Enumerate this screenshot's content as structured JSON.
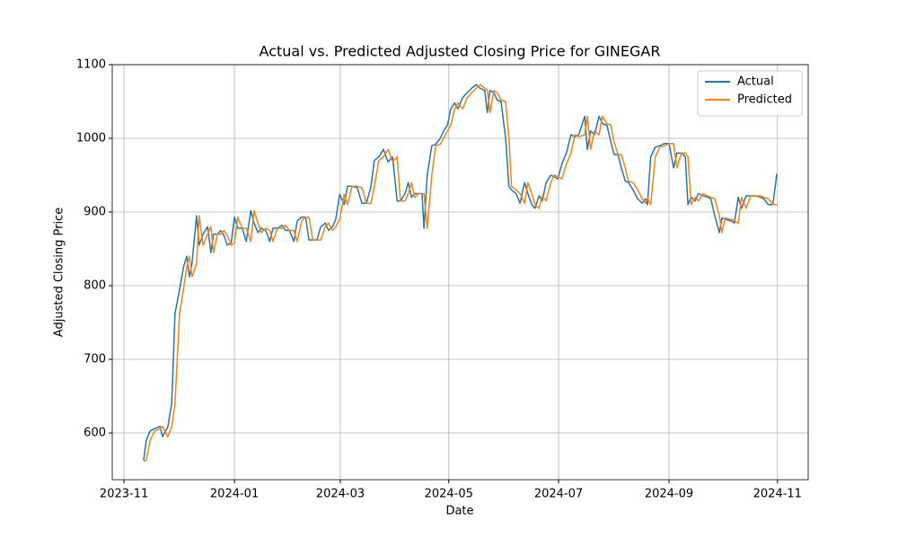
{
  "chart_data": {
    "type": "line",
    "title": "Actual vs. Predicted Adjusted Closing Price for GINEGAR",
    "x_label": "Date",
    "y_label": "Adjusted Closing Price",
    "x": [
      2023.861,
      2023.865,
      2023.871,
      2023.878,
      2023.886,
      2023.89,
      2023.898,
      2023.904,
      2023.909,
      2023.916,
      2023.922,
      2023.927,
      2023.931,
      2023.935,
      2023.942,
      2023.946,
      2023.952,
      2023.959,
      2023.964,
      2023.968,
      2023.974,
      2023.979,
      2023.984,
      2023.989,
      2023.995,
      2024.0,
      2024.005,
      2024.012,
      2024.018,
      2024.025,
      2024.03,
      2024.036,
      2024.041,
      2024.048,
      2024.054,
      2024.059,
      2024.066,
      2024.073,
      2024.078,
      2024.084,
      2024.091,
      2024.096,
      2024.103,
      2024.109,
      2024.114,
      2024.12,
      2024.126,
      2024.132,
      2024.139,
      2024.144,
      2024.15,
      2024.155,
      2024.161,
      2024.168,
      2024.173,
      2024.18,
      2024.188,
      2024.195,
      2024.202,
      2024.209,
      2024.214,
      2024.221,
      2024.228,
      2024.235,
      2024.242,
      2024.249,
      2024.254,
      2024.261,
      2024.266,
      2024.271,
      2024.276,
      2024.282,
      2024.287,
      2024.29,
      2024.295,
      2024.302,
      2024.308,
      2024.315,
      2024.32,
      2024.326,
      2024.331,
      2024.337,
      2024.342,
      2024.349,
      2024.356,
      2024.363,
      2024.37,
      2024.376,
      2024.383,
      2024.387,
      2024.391,
      2024.397,
      2024.402,
      2024.408,
      2024.415,
      2024.42,
      2024.424,
      2024.431,
      2024.437,
      2024.444,
      2024.449,
      2024.455,
      2024.46,
      2024.466,
      2024.471,
      2024.477,
      2024.484,
      2024.489,
      2024.495,
      2024.501,
      2024.508,
      2024.515,
      2024.521,
      2024.527,
      2024.536,
      2024.54,
      2024.545,
      2024.551,
      2024.558,
      2024.563,
      2024.57,
      2024.576,
      2024.581,
      2024.587,
      2024.592,
      2024.598,
      2024.603,
      2024.61,
      2024.617,
      2024.624,
      2024.629,
      2024.632,
      2024.637,
      2024.644,
      2024.651,
      2024.658,
      2024.665,
      2024.672,
      2024.677,
      2024.684,
      2024.69,
      2024.694,
      2024.699,
      2024.705,
      2024.71,
      2024.717,
      2024.724,
      2024.729,
      2024.735,
      2024.742,
      2024.746,
      2024.751,
      2024.76,
      2024.765,
      2024.771,
      2024.776,
      2024.783,
      2024.79,
      2024.798,
      2024.805,
      2024.81,
      2024.817,
      2024.824,
      2024.83
    ],
    "series": [
      {
        "name": "Actual",
        "color": "#1f77b4",
        "values": [
          563,
          590,
          603,
          606,
          609,
          595,
          608,
          640,
          762,
          795,
          825,
          840,
          812,
          830,
          895,
          855,
          870,
          880,
          845,
          870,
          870,
          875,
          868,
          855,
          858,
          893,
          878,
          878,
          860,
          902,
          885,
          872,
          878,
          875,
          860,
          878,
          878,
          882,
          875,
          875,
          860,
          888,
          893,
          893,
          862,
          862,
          862,
          880,
          885,
          875,
          880,
          890,
          924,
          910,
          935,
          935,
          933,
          912,
          912,
          935,
          970,
          975,
          985,
          968,
          975,
          915,
          915,
          925,
          940,
          920,
          925,
          925,
          925,
          878,
          950,
          990,
          992,
          1000,
          1010,
          1018,
          1040,
          1048,
          1040,
          1055,
          1062,
          1068,
          1073,
          1068,
          1065,
          1035,
          1065,
          1062,
          1052,
          1050,
          1000,
          935,
          930,
          925,
          912,
          940,
          925,
          910,
          905,
          922,
          915,
          940,
          950,
          948,
          945,
          965,
          980,
          1005,
          1002,
          1005,
          1030,
          985,
          1010,
          1005,
          1030,
          1020,
          1018,
          995,
          978,
          978,
          960,
          942,
          940,
          930,
          918,
          912,
          918,
          910,
          975,
          988,
          990,
          993,
          993,
          960,
          980,
          980,
          975,
          910,
          920,
          915,
          925,
          922,
          920,
          918,
          895,
          872,
          892,
          890,
          888,
          885,
          920,
          905,
          922,
          922,
          922,
          920,
          918,
          910,
          910,
          952
        ]
      },
      {
        "name": "Predicted",
        "color": "#ff7f0e",
        "values": [
          562,
          563,
          590,
          603,
          606,
          609,
          595,
          608,
          640,
          762,
          795,
          825,
          840,
          812,
          830,
          895,
          855,
          870,
          880,
          845,
          870,
          870,
          875,
          868,
          855,
          858,
          893,
          878,
          878,
          860,
          902,
          885,
          872,
          878,
          875,
          860,
          878,
          878,
          882,
          875,
          875,
          860,
          888,
          893,
          893,
          862,
          862,
          862,
          880,
          885,
          875,
          880,
          890,
          924,
          910,
          935,
          935,
          933,
          912,
          912,
          935,
          970,
          975,
          985,
          968,
          975,
          915,
          915,
          925,
          940,
          920,
          925,
          925,
          925,
          878,
          950,
          990,
          992,
          1000,
          1010,
          1018,
          1040,
          1048,
          1040,
          1055,
          1062,
          1068,
          1073,
          1068,
          1065,
          1035,
          1065,
          1062,
          1052,
          1050,
          1000,
          935,
          930,
          925,
          912,
          940,
          925,
          910,
          905,
          922,
          915,
          940,
          950,
          948,
          945,
          965,
          980,
          1005,
          1002,
          1005,
          1030,
          985,
          1010,
          1005,
          1030,
          1020,
          1018,
          995,
          978,
          978,
          960,
          942,
          940,
          930,
          918,
          912,
          918,
          910,
          975,
          988,
          990,
          993,
          993,
          960,
          980,
          980,
          975,
          910,
          920,
          915,
          925,
          922,
          920,
          918,
          895,
          872,
          892,
          890,
          888,
          885,
          920,
          905,
          922,
          922,
          922,
          920,
          918,
          910,
          910
        ]
      }
    ],
    "xlim": [
      2023.813,
      2024.878
    ],
    "xticks": [
      {
        "value": 2023.831,
        "label": "2023-11"
      },
      {
        "value": 2024.0,
        "label": "2024-01"
      },
      {
        "value": 2024.162,
        "label": "2024-03"
      },
      {
        "value": 2024.328,
        "label": "2024-05"
      },
      {
        "value": 2024.496,
        "label": "2024-07"
      },
      {
        "value": 2024.665,
        "label": "2024-09"
      },
      {
        "value": 2024.831,
        "label": "2024-11"
      }
    ],
    "ylim": [
      536.6,
      1100
    ],
    "yticks": [
      600,
      700,
      800,
      900,
      1000,
      1100
    ],
    "grid": true,
    "legend": "upper right"
  }
}
